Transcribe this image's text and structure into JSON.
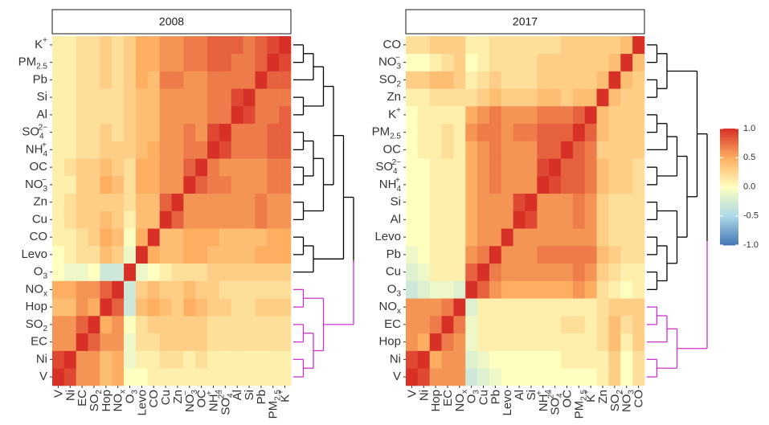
{
  "chart_data": [
    {
      "type": "heatmap",
      "title": "2008",
      "variables": [
        {
          "base": "V"
        },
        {
          "base": "Ni"
        },
        {
          "base": "EC"
        },
        {
          "base": "SO",
          "sub": "2"
        },
        {
          "base": "Hop"
        },
        {
          "base": "NO",
          "sub": "x"
        },
        {
          "base": "O",
          "sub": "3"
        },
        {
          "base": "Levo"
        },
        {
          "base": "CO"
        },
        {
          "base": "Cu"
        },
        {
          "base": "Zn"
        },
        {
          "base": "NO",
          "sub": "3",
          "sup": "−"
        },
        {
          "base": "OC"
        },
        {
          "base": "NH",
          "sub": "4",
          "sup": "+"
        },
        {
          "base": "SO",
          "sub": "4",
          "sup": "2−"
        },
        {
          "base": "Al"
        },
        {
          "base": "Si"
        },
        {
          "base": "Pb"
        },
        {
          "base": "PM",
          "sub": "2.5"
        },
        {
          "base": "K",
          "sup": "+"
        }
      ],
      "values": [
        [
          1
        ],
        [
          0.9,
          1
        ],
        [
          0.6,
          0.6,
          1
        ],
        [
          0.6,
          0.6,
          0.8,
          1
        ],
        [
          0.4,
          0.4,
          0.6,
          0.5,
          1
        ],
        [
          0.5,
          0.5,
          0.6,
          0.6,
          0.8,
          1
        ],
        [
          0,
          -0.1,
          -0.1,
          0,
          -0.3,
          -0.3,
          1
        ],
        [
          0,
          0.1,
          0.2,
          0.2,
          0.4,
          0.3,
          -0.1,
          1
        ],
        [
          0.1,
          0.1,
          0.2,
          0.3,
          0.5,
          0.4,
          0,
          0.5,
          1
        ],
        [
          0.1,
          0.2,
          0.3,
          0.3,
          0.4,
          0.3,
          0.1,
          0.4,
          0.4,
          1
        ],
        [
          0.1,
          0.2,
          0.3,
          0.3,
          0.3,
          0.3,
          0.2,
          0.4,
          0.4,
          0.8,
          1
        ],
        [
          0.1,
          0.1,
          0.3,
          0.3,
          0.5,
          0.4,
          0.2,
          0.5,
          0.5,
          0.6,
          0.6,
          1
        ],
        [
          0.1,
          0.2,
          0.3,
          0.3,
          0.4,
          0.3,
          0.2,
          0.5,
          0.5,
          0.6,
          0.6,
          0.8,
          1
        ],
        [
          0.1,
          0.1,
          0.2,
          0.2,
          0.3,
          0.3,
          0.3,
          0.4,
          0.5,
          0.6,
          0.6,
          0.7,
          0.7,
          1
        ],
        [
          0.1,
          0.1,
          0.2,
          0.2,
          0.3,
          0.2,
          0.3,
          0.4,
          0.4,
          0.6,
          0.6,
          0.7,
          0.6,
          0.9,
          1
        ],
        [
          0.1,
          0.1,
          0.2,
          0.2,
          0.2,
          0.2,
          0.3,
          0.4,
          0.4,
          0.6,
          0.6,
          0.6,
          0.6,
          0.7,
          0.7,
          1
        ],
        [
          0.1,
          0.1,
          0.2,
          0.2,
          0.2,
          0.2,
          0.3,
          0.4,
          0.4,
          0.6,
          0.6,
          0.6,
          0.6,
          0.7,
          0.7,
          0.9,
          1
        ],
        [
          0.1,
          0.1,
          0.2,
          0.2,
          0.3,
          0.2,
          0.3,
          0.5,
          0.4,
          0.7,
          0.7,
          0.6,
          0.6,
          0.7,
          0.7,
          0.7,
          0.7,
          1
        ],
        [
          0.1,
          0.1,
          0.2,
          0.2,
          0.3,
          0.2,
          0.3,
          0.5,
          0.5,
          0.6,
          0.6,
          0.7,
          0.7,
          0.8,
          0.8,
          0.7,
          0.7,
          0.8,
          1
        ],
        [
          0.1,
          0.1,
          0.2,
          0.2,
          0.3,
          0.2,
          0.3,
          0.5,
          0.5,
          0.6,
          0.6,
          0.7,
          0.7,
          0.8,
          0.8,
          0.8,
          0.7,
          0.8,
          0.9,
          1
        ]
      ]
    },
    {
      "type": "heatmap",
      "title": "2017",
      "variables": [
        {
          "base": "V"
        },
        {
          "base": "Ni"
        },
        {
          "base": "Hop"
        },
        {
          "base": "EC"
        },
        {
          "base": "NO",
          "sub": "x"
        },
        {
          "base": "O",
          "sub": "3"
        },
        {
          "base": "Cu"
        },
        {
          "base": "Pb"
        },
        {
          "base": "Levo"
        },
        {
          "base": "Al"
        },
        {
          "base": "Si"
        },
        {
          "base": "NH",
          "sub": "4",
          "sup": "+"
        },
        {
          "base": "SO",
          "sub": "4",
          "sup": "2−"
        },
        {
          "base": "OC"
        },
        {
          "base": "PM",
          "sub": "2.5"
        },
        {
          "base": "K",
          "sup": "+"
        },
        {
          "base": "Zn"
        },
        {
          "base": "SO",
          "sub": "2"
        },
        {
          "base": "NO",
          "sub": "3",
          "sup": "−"
        },
        {
          "base": "CO"
        }
      ],
      "values": [
        [
          1
        ],
        [
          0.9,
          1
        ],
        [
          0.6,
          0.5,
          1
        ],
        [
          0.6,
          0.6,
          0.7,
          1
        ],
        [
          0.6,
          0.6,
          0.6,
          0.7,
          1
        ],
        [
          -0.3,
          -0.2,
          -0.1,
          -0.1,
          -0.2,
          1
        ],
        [
          -0.2,
          -0.1,
          0.1,
          0.1,
          0.1,
          0.8,
          1
        ],
        [
          -0.1,
          0,
          0.1,
          0.1,
          0.1,
          0.6,
          0.7,
          1
        ],
        [
          0,
          0,
          0.1,
          0.1,
          0.1,
          0.5,
          0.6,
          0.6,
          1
        ],
        [
          0,
          0,
          0.1,
          0.1,
          0.1,
          0.5,
          0.6,
          0.6,
          0.6,
          1
        ],
        [
          0,
          0,
          0.1,
          0.1,
          0.1,
          0.5,
          0.6,
          0.6,
          0.6,
          0.9,
          1
        ],
        [
          0,
          0,
          0.1,
          0.1,
          0.1,
          0.5,
          0.6,
          0.7,
          0.6,
          0.6,
          0.6,
          1
        ],
        [
          0,
          0,
          0.1,
          0.1,
          0.1,
          0.5,
          0.6,
          0.7,
          0.6,
          0.6,
          0.6,
          0.9,
          1
        ],
        [
          0,
          0.1,
          0.1,
          0.2,
          0.1,
          0.5,
          0.6,
          0.7,
          0.6,
          0.6,
          0.6,
          0.8,
          0.8,
          1
        ],
        [
          0,
          0.1,
          0.1,
          0.2,
          0.1,
          0.6,
          0.7,
          0.7,
          0.6,
          0.7,
          0.7,
          0.8,
          0.8,
          0.8,
          1
        ],
        [
          0,
          0.1,
          0.1,
          0.1,
          0.1,
          0.5,
          0.6,
          0.7,
          0.6,
          0.6,
          0.6,
          0.7,
          0.7,
          0.7,
          0.8,
          1
        ],
        [
          0.1,
          0.1,
          0.2,
          0.2,
          0.2,
          0.2,
          0.3,
          0.4,
          0.3,
          0.3,
          0.3,
          0.4,
          0.4,
          0.3,
          0.4,
          0.4,
          1
        ],
        [
          0.3,
          0.3,
          0.4,
          0.4,
          0.3,
          0.1,
          0.2,
          0.3,
          0.2,
          0.2,
          0.2,
          0.3,
          0.3,
          0.3,
          0.3,
          0.3,
          0.4,
          1
        ],
        [
          0,
          0,
          0.1,
          0.2,
          0.3,
          0,
          0.1,
          0.2,
          0.2,
          0.2,
          0.2,
          0.3,
          0.3,
          0.3,
          0.3,
          0.3,
          0.3,
          0.4,
          1
        ],
        [
          0.2,
          0.2,
          0.3,
          0.3,
          0.3,
          0.1,
          0.1,
          0.2,
          0.2,
          0.2,
          0.2,
          0.2,
          0.2,
          0.3,
          0.3,
          0.3,
          0.3,
          0.3,
          0.4,
          1
        ]
      ]
    }
  ],
  "colorbar": {
    "lim": [
      -1,
      1
    ],
    "ticks": [
      {
        "value": 1,
        "label": "1.0"
      },
      {
        "value": 0.5,
        "label": "0.5"
      },
      {
        "value": 0,
        "label": "0.0"
      },
      {
        "value": -0.5,
        "label": "-0.5"
      },
      {
        "value": -1,
        "label": "-1.0"
      }
    ]
  }
}
